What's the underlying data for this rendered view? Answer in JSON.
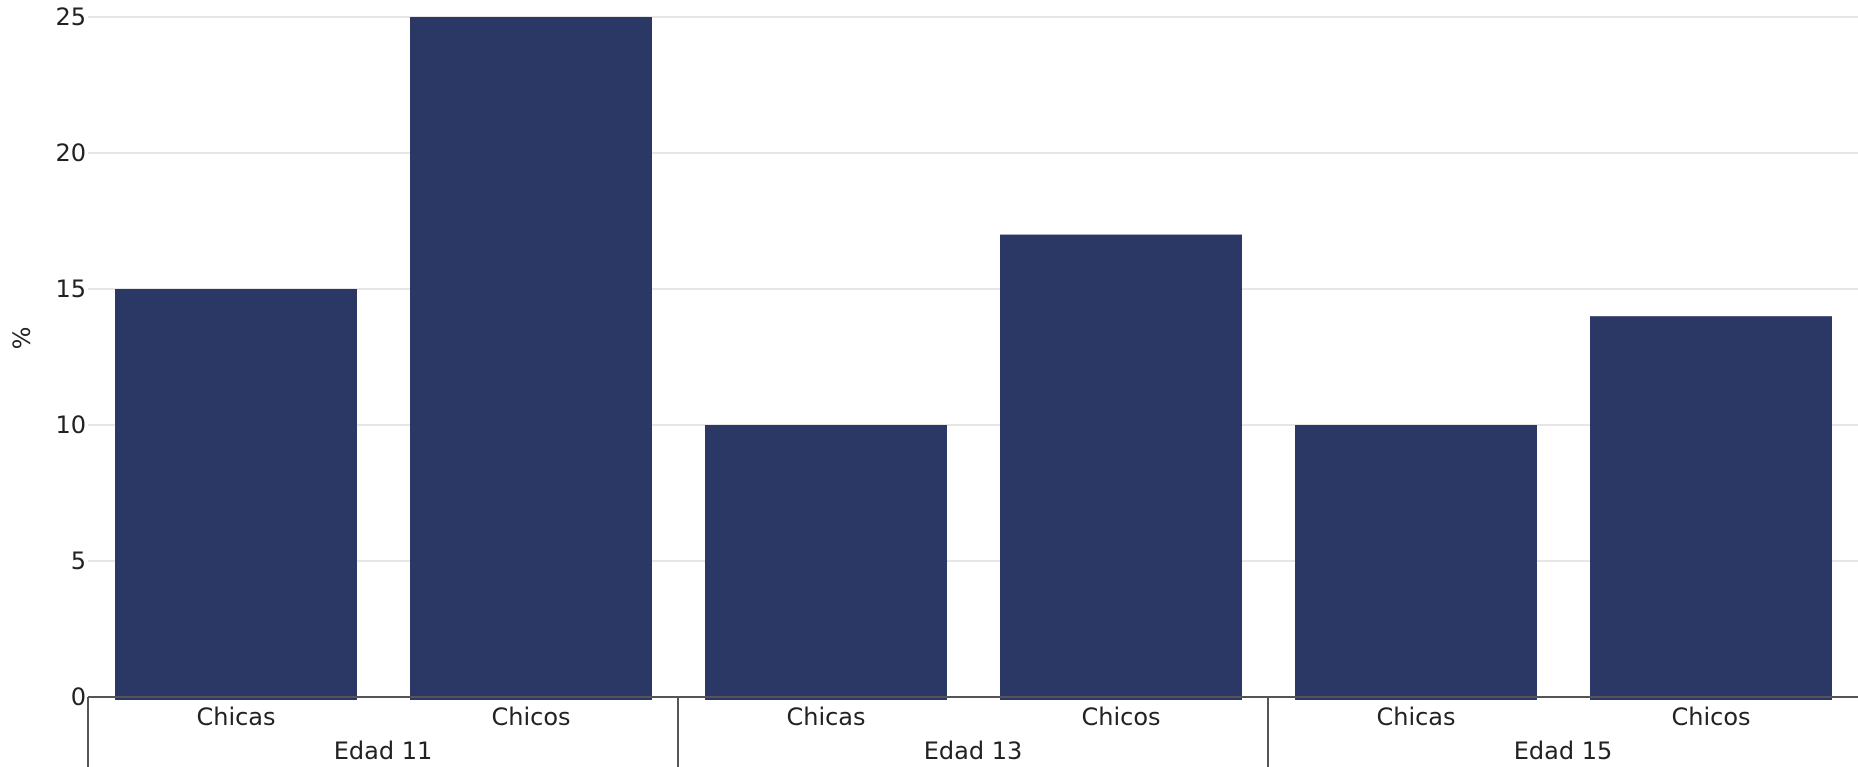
{
  "chart_data": {
    "type": "bar",
    "ylabel": "%",
    "ylim": [
      0,
      25
    ],
    "yticks": [
      0,
      5,
      10,
      15,
      20,
      25
    ],
    "grid": true,
    "bar_color": "#2b3764",
    "groups": [
      {
        "label": "Edad 11",
        "categories": [
          "Chicas",
          "Chicos"
        ],
        "values": [
          15,
          25
        ]
      },
      {
        "label": "Edad 13",
        "categories": [
          "Chicas",
          "Chicos"
        ],
        "values": [
          10,
          17
        ]
      },
      {
        "label": "Edad 15",
        "categories": [
          "Chicas",
          "Chicos"
        ],
        "values": [
          10,
          14
        ]
      }
    ]
  }
}
